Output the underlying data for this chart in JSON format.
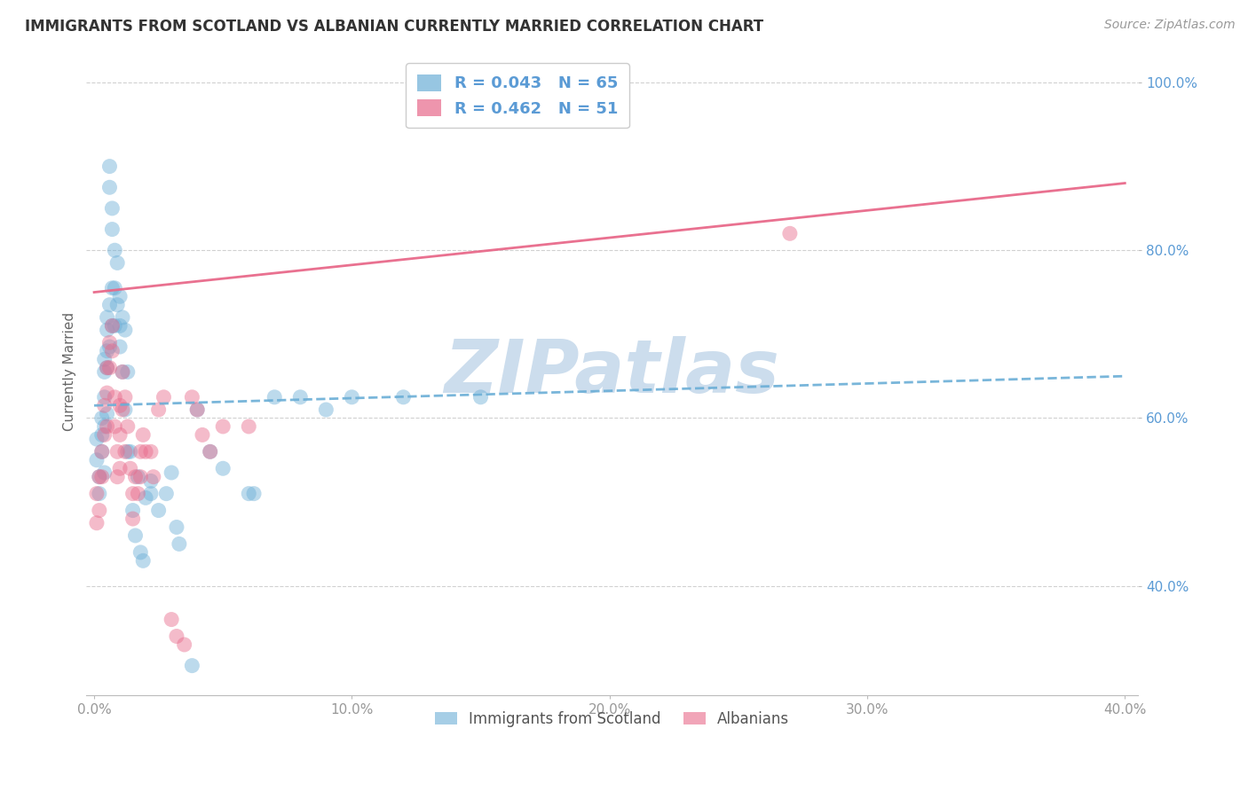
{
  "title": "IMMIGRANTS FROM SCOTLAND VS ALBANIAN CURRENTLY MARRIED CORRELATION CHART",
  "source": "Source: ZipAtlas.com",
  "ylabel_label": "Currently Married",
  "xlim": [
    -0.003,
    0.405
  ],
  "ylim": [
    0.27,
    1.04
  ],
  "x_ticks": [
    0.0,
    0.1,
    0.2,
    0.3,
    0.4
  ],
  "x_tick_labels": [
    "0.0%",
    "10.0%",
    "20.0%",
    "30.0%",
    "40.0%"
  ],
  "y_ticks": [
    0.4,
    0.6,
    0.8,
    1.0
  ],
  "y_tick_labels": [
    "40.0%",
    "60.0%",
    "80.0%",
    "100.0%"
  ],
  "scotland_color": "#6baed6",
  "albanian_color": "#e8698a",
  "background_color": "#ffffff",
  "grid_color": "#cccccc",
  "watermark_color": "#ccdded",
  "scotland_x": [
    0.001,
    0.001,
    0.002,
    0.002,
    0.003,
    0.003,
    0.003,
    0.004,
    0.004,
    0.004,
    0.004,
    0.004,
    0.005,
    0.005,
    0.005,
    0.005,
    0.005,
    0.006,
    0.006,
    0.006,
    0.006,
    0.007,
    0.007,
    0.007,
    0.007,
    0.008,
    0.008,
    0.008,
    0.009,
    0.009,
    0.01,
    0.01,
    0.01,
    0.011,
    0.011,
    0.012,
    0.012,
    0.013,
    0.013,
    0.014,
    0.015,
    0.016,
    0.017,
    0.018,
    0.019,
    0.02,
    0.022,
    0.022,
    0.025,
    0.028,
    0.03,
    0.032,
    0.033,
    0.038,
    0.04,
    0.045,
    0.05,
    0.06,
    0.062,
    0.07,
    0.08,
    0.09,
    0.1,
    0.12,
    0.15
  ],
  "scotland_y": [
    0.575,
    0.55,
    0.53,
    0.51,
    0.6,
    0.58,
    0.56,
    0.67,
    0.655,
    0.625,
    0.59,
    0.535,
    0.72,
    0.705,
    0.68,
    0.66,
    0.605,
    0.9,
    0.875,
    0.735,
    0.685,
    0.85,
    0.825,
    0.755,
    0.71,
    0.8,
    0.755,
    0.71,
    0.785,
    0.735,
    0.745,
    0.71,
    0.685,
    0.72,
    0.655,
    0.705,
    0.61,
    0.655,
    0.56,
    0.56,
    0.49,
    0.46,
    0.53,
    0.44,
    0.43,
    0.505,
    0.525,
    0.51,
    0.49,
    0.51,
    0.535,
    0.47,
    0.45,
    0.305,
    0.61,
    0.56,
    0.54,
    0.51,
    0.51,
    0.625,
    0.625,
    0.61,
    0.625,
    0.625,
    0.625
  ],
  "albanian_x": [
    0.001,
    0.001,
    0.002,
    0.002,
    0.003,
    0.003,
    0.004,
    0.004,
    0.005,
    0.005,
    0.005,
    0.006,
    0.006,
    0.007,
    0.007,
    0.008,
    0.008,
    0.009,
    0.009,
    0.01,
    0.01,
    0.01,
    0.011,
    0.011,
    0.012,
    0.012,
    0.013,
    0.014,
    0.015,
    0.015,
    0.016,
    0.017,
    0.018,
    0.018,
    0.019,
    0.02,
    0.022,
    0.023,
    0.025,
    0.027,
    0.03,
    0.032,
    0.035,
    0.038,
    0.04,
    0.042,
    0.045,
    0.05,
    0.06,
    0.27
  ],
  "albanian_y": [
    0.51,
    0.475,
    0.53,
    0.49,
    0.56,
    0.53,
    0.615,
    0.58,
    0.66,
    0.63,
    0.59,
    0.69,
    0.66,
    0.71,
    0.68,
    0.625,
    0.59,
    0.56,
    0.53,
    0.615,
    0.58,
    0.54,
    0.655,
    0.61,
    0.625,
    0.56,
    0.59,
    0.54,
    0.51,
    0.48,
    0.53,
    0.51,
    0.56,
    0.53,
    0.58,
    0.56,
    0.56,
    0.53,
    0.61,
    0.625,
    0.36,
    0.34,
    0.33,
    0.625,
    0.61,
    0.58,
    0.56,
    0.59,
    0.59,
    0.82
  ],
  "scotland_line_x": [
    0.0,
    0.4
  ],
  "scotland_line_y": [
    0.615,
    0.65
  ],
  "albanian_line_x": [
    0.0,
    0.4
  ],
  "albanian_line_y": [
    0.75,
    0.88
  ]
}
